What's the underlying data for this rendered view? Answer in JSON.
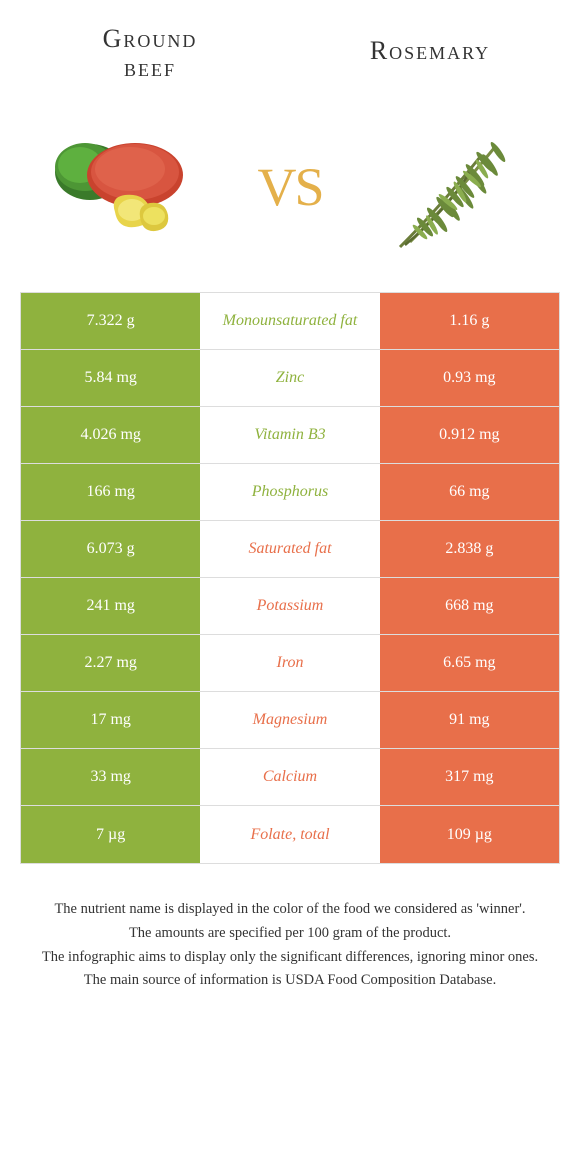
{
  "header": {
    "left_title_line1": "Ground",
    "left_title_line2": "beef",
    "right_title": "Rosemary"
  },
  "vs_label": "VS",
  "colors": {
    "left_bg": "#8fb23e",
    "right_bg": "#e86f4a",
    "left_text": "#8fb23e",
    "right_text": "#e86f4a",
    "vs": "#e4b04a"
  },
  "rows": [
    {
      "left": "7.322 g",
      "label": "Monounsaturated fat",
      "right": "1.16 g",
      "winner": "left"
    },
    {
      "left": "5.84 mg",
      "label": "Zinc",
      "right": "0.93 mg",
      "winner": "left"
    },
    {
      "left": "4.026 mg",
      "label": "Vitamin B3",
      "right": "0.912 mg",
      "winner": "left"
    },
    {
      "left": "166 mg",
      "label": "Phosphorus",
      "right": "66 mg",
      "winner": "left"
    },
    {
      "left": "6.073 g",
      "label": "Saturated fat",
      "right": "2.838 g",
      "winner": "right"
    },
    {
      "left": "241 mg",
      "label": "Potassium",
      "right": "668 mg",
      "winner": "right"
    },
    {
      "left": "2.27 mg",
      "label": "Iron",
      "right": "6.65 mg",
      "winner": "right"
    },
    {
      "left": "17 mg",
      "label": "Magnesium",
      "right": "91 mg",
      "winner": "right"
    },
    {
      "left": "33 mg",
      "label": "Calcium",
      "right": "317 mg",
      "winner": "right"
    },
    {
      "left": "7 µg",
      "label": "Folate, total",
      "right": "109 µg",
      "winner": "right"
    }
  ],
  "footer": {
    "line1": "The nutrient name is displayed in the color of the food we considered as 'winner'.",
    "line2": "The amounts are specified per 100 gram of the product.",
    "line3": "The infographic aims to display only the significant differences, ignoring minor ones.",
    "line4": "The main source of information is USDA Food Composition Database."
  }
}
